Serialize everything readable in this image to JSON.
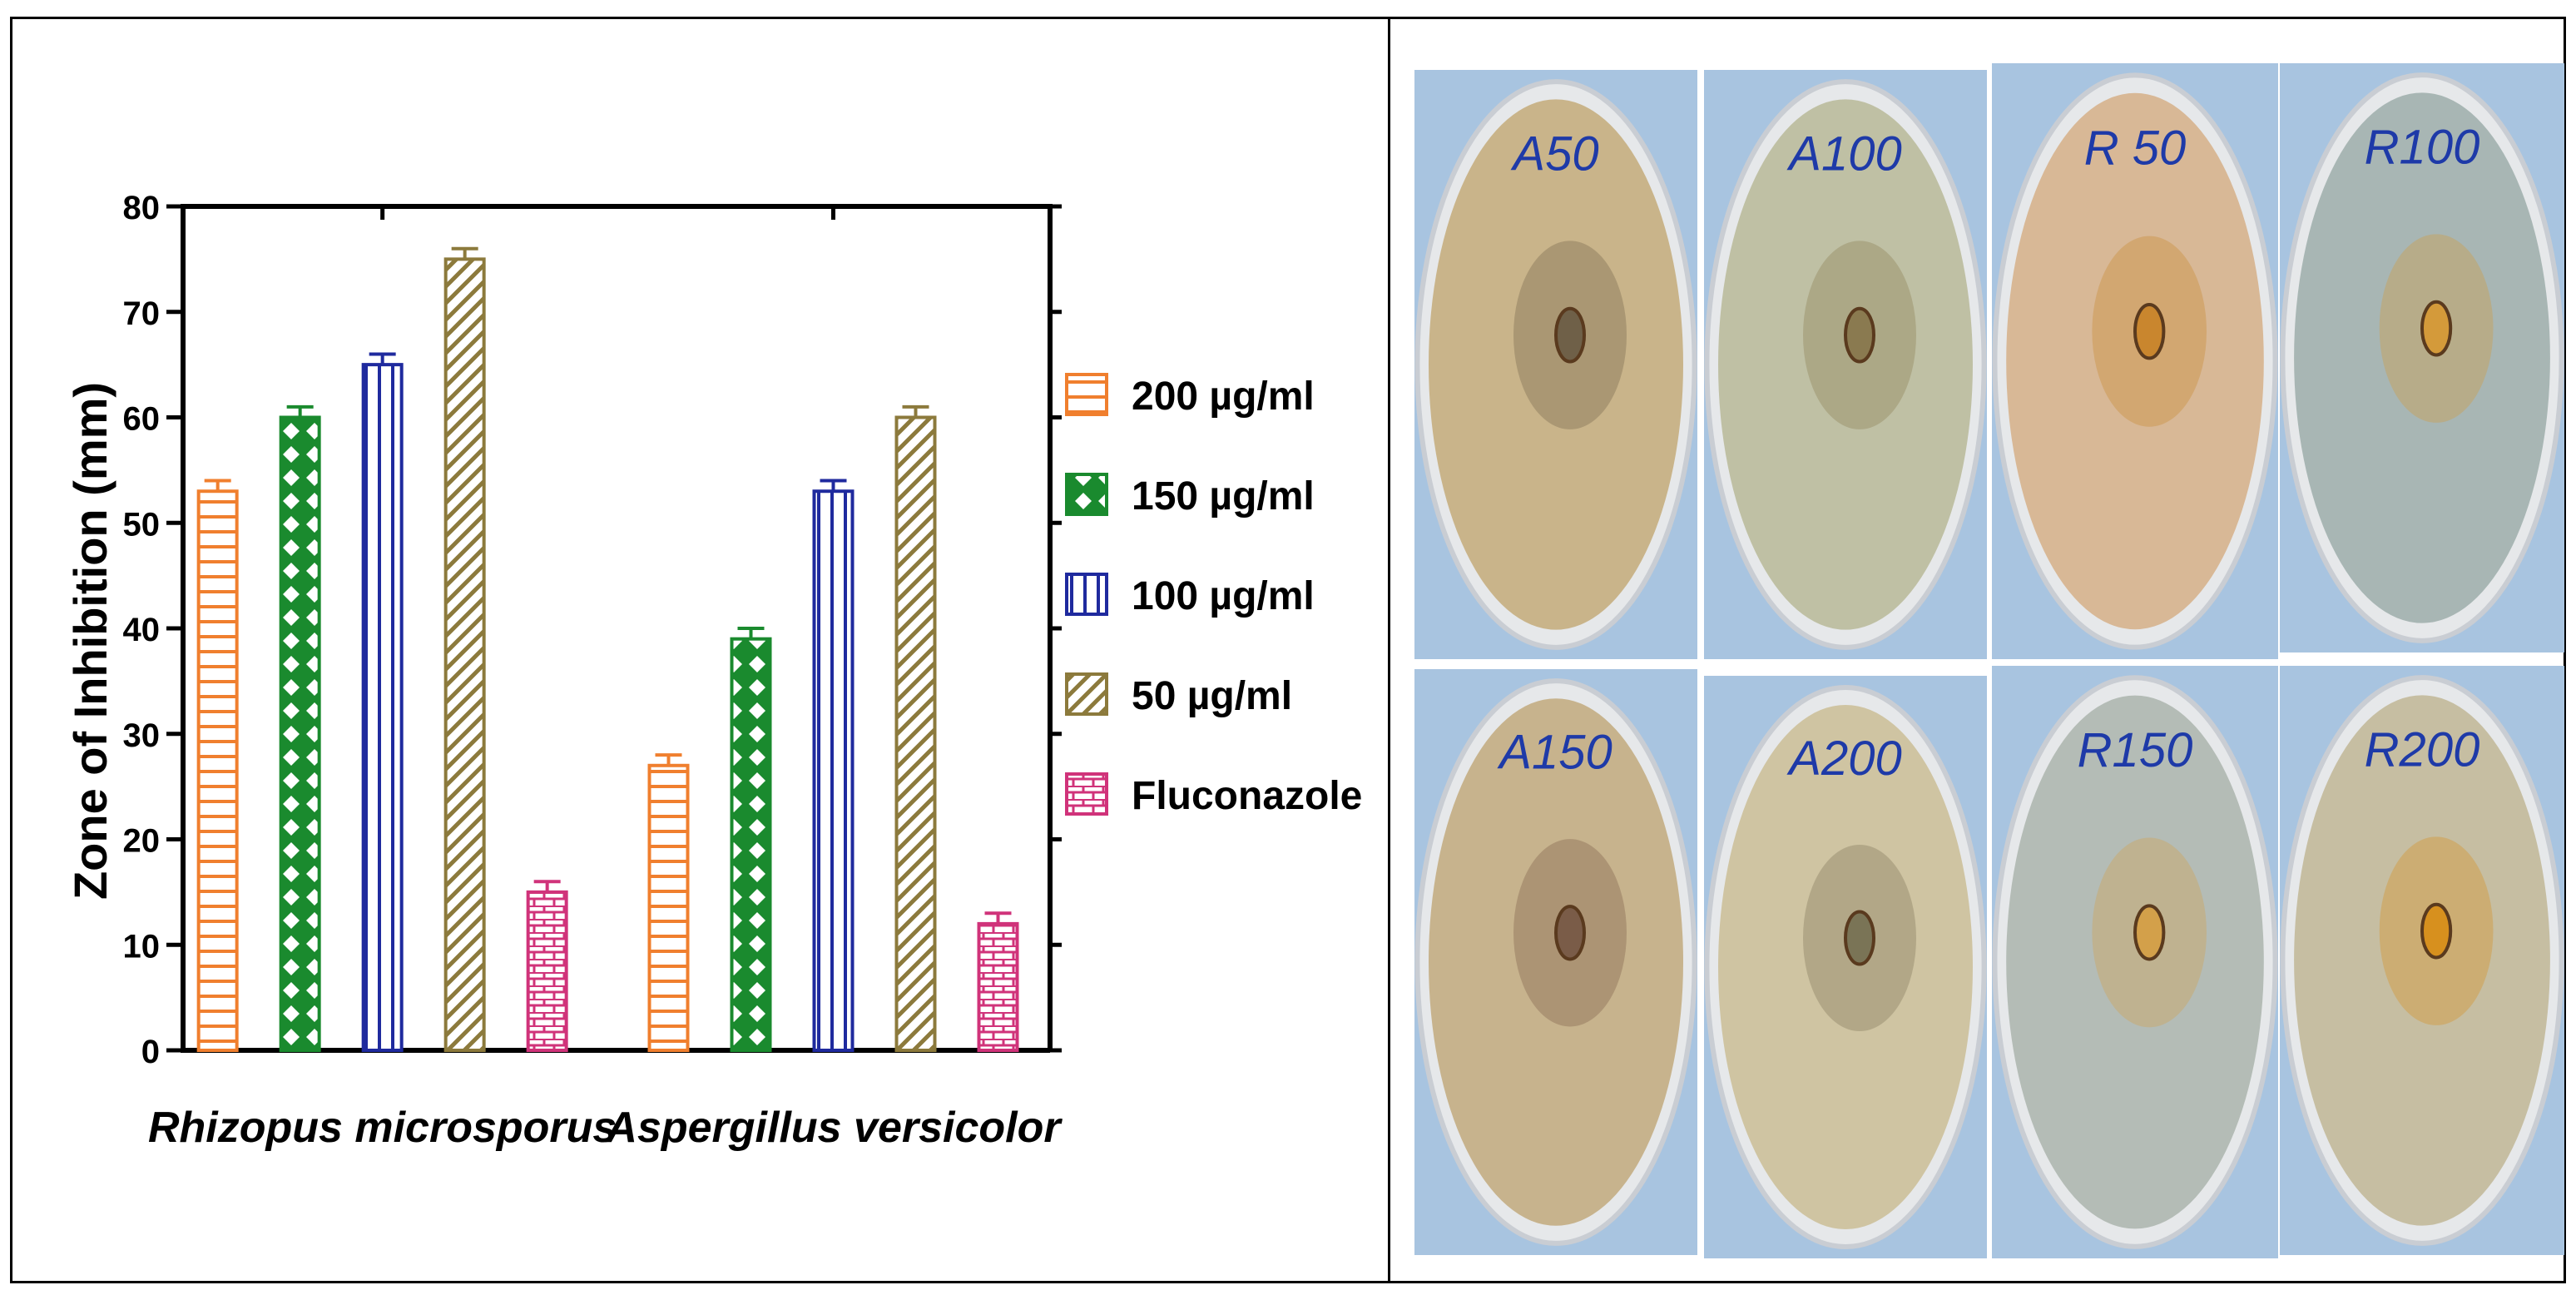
{
  "chart_data": {
    "type": "bar",
    "ylabel": "Zone of Inhibition (mm)",
    "xlabel": "",
    "ylim": [
      0,
      80
    ],
    "yticks": [
      0,
      10,
      20,
      30,
      40,
      50,
      60,
      70,
      80
    ],
    "categories": [
      "Rhizopus microsporus",
      "Aspergillus versicolor"
    ],
    "grid": false,
    "legend_position": "right",
    "series": [
      {
        "name": "200 µg/ml",
        "values": [
          53,
          27
        ],
        "errors": [
          1,
          1
        ],
        "color": "#f07f2e",
        "pattern": "horizontal-lines"
      },
      {
        "name": "150 µg/ml",
        "values": [
          60,
          39
        ],
        "errors": [
          1,
          1
        ],
        "color": "#1a8a2e",
        "pattern": "crosshatch"
      },
      {
        "name": "100 µg/ml",
        "values": [
          65,
          53
        ],
        "errors": [
          1,
          1
        ],
        "color": "#1f2a9e",
        "pattern": "vertical-lines"
      },
      {
        "name": "50 µg/ml",
        "values": [
          75,
          60
        ],
        "errors": [
          1,
          1
        ],
        "color": "#8c7a3c",
        "pattern": "diagonal-lines"
      },
      {
        "name": "Fluconazole",
        "values": [
          15,
          12
        ],
        "errors": [
          1,
          1
        ],
        "color": "#d0337a",
        "pattern": "brick"
      }
    ]
  },
  "plates": [
    {
      "label": "A50",
      "bg": "#c9b48a",
      "center": "#6f6048"
    },
    {
      "label": "A100",
      "bg": "#bfc0a4",
      "center": "#8a7a50"
    },
    {
      "label": "R 50",
      "bg": "#d8b896",
      "center": "#c9862e"
    },
    {
      "label": "R100",
      "bg": "#a8b6b4",
      "center": "#d49a3a"
    },
    {
      "label": "A150",
      "bg": "#c7b38d",
      "center": "#7a5c48"
    },
    {
      "label": "A200",
      "bg": "#cfc4a2",
      "center": "#7a7456"
    },
    {
      "label": "R150",
      "bg": "#b4bcb6",
      "center": "#d3a04a"
    },
    {
      "label": "R200",
      "bg": "#c6bea2",
      "center": "#d7901e"
    }
  ]
}
